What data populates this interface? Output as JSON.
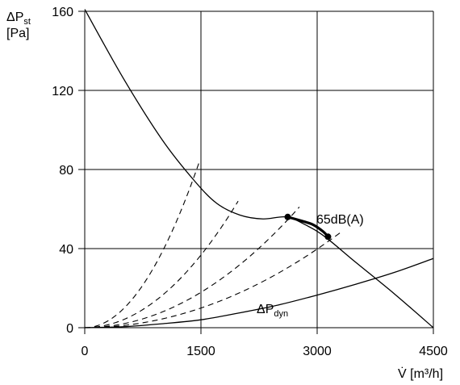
{
  "chart_data": {
    "type": "line",
    "xlabel": {
      "main": "V̇ [m³/h]"
    },
    "ylabel": {
      "prefix": "ΔP",
      "sub": "st",
      "unit": "[Pa]"
    },
    "xlim": [
      0,
      4500
    ],
    "ylim": [
      0,
      160
    ],
    "xticks": [
      "0",
      "1500",
      "3000",
      "4500"
    ],
    "yticks": [
      "0",
      "40",
      "80",
      "120",
      "160"
    ],
    "grid": true,
    "series": [
      {
        "role": "fan-curve",
        "x": [
          0,
          500,
          1000,
          1400,
          1700,
          2000,
          2300,
          2600,
          2850,
          3100,
          3500,
          4000,
          4500
        ],
        "y": [
          161,
          126,
          95,
          75,
          63,
          57,
          55,
          56,
          52,
          46,
          33,
          17,
          0
        ]
      },
      {
        "role": "dynamic-pressure",
        "x": [
          0,
          500,
          1000,
          1500,
          2000,
          2500,
          3000,
          3500,
          4000,
          4500
        ],
        "y": [
          0,
          0.5,
          2,
          4,
          7.5,
          11.5,
          16.5,
          22,
          28,
          35
        ]
      },
      {
        "role": "noise-segment",
        "x": [
          2620,
          2800,
          2950,
          3080,
          3140
        ],
        "y": [
          56,
          54,
          52,
          48.5,
          46
        ]
      }
    ],
    "system_curves": [
      {
        "x_end": 1480,
        "y_end": 84
      },
      {
        "x_end": 1980,
        "y_end": 64
      },
      {
        "x_end": 2770,
        "y_end": 61
      },
      {
        "x_end": 3330,
        "y_end": 49
      }
    ],
    "markers": [
      {
        "x": 2620,
        "y": 56
      },
      {
        "x": 3140,
        "y": 46
      }
    ],
    "annotations": {
      "noise": "65dB(A)",
      "dyn_prefix": "ΔP",
      "dyn_sub": "dyn"
    }
  }
}
